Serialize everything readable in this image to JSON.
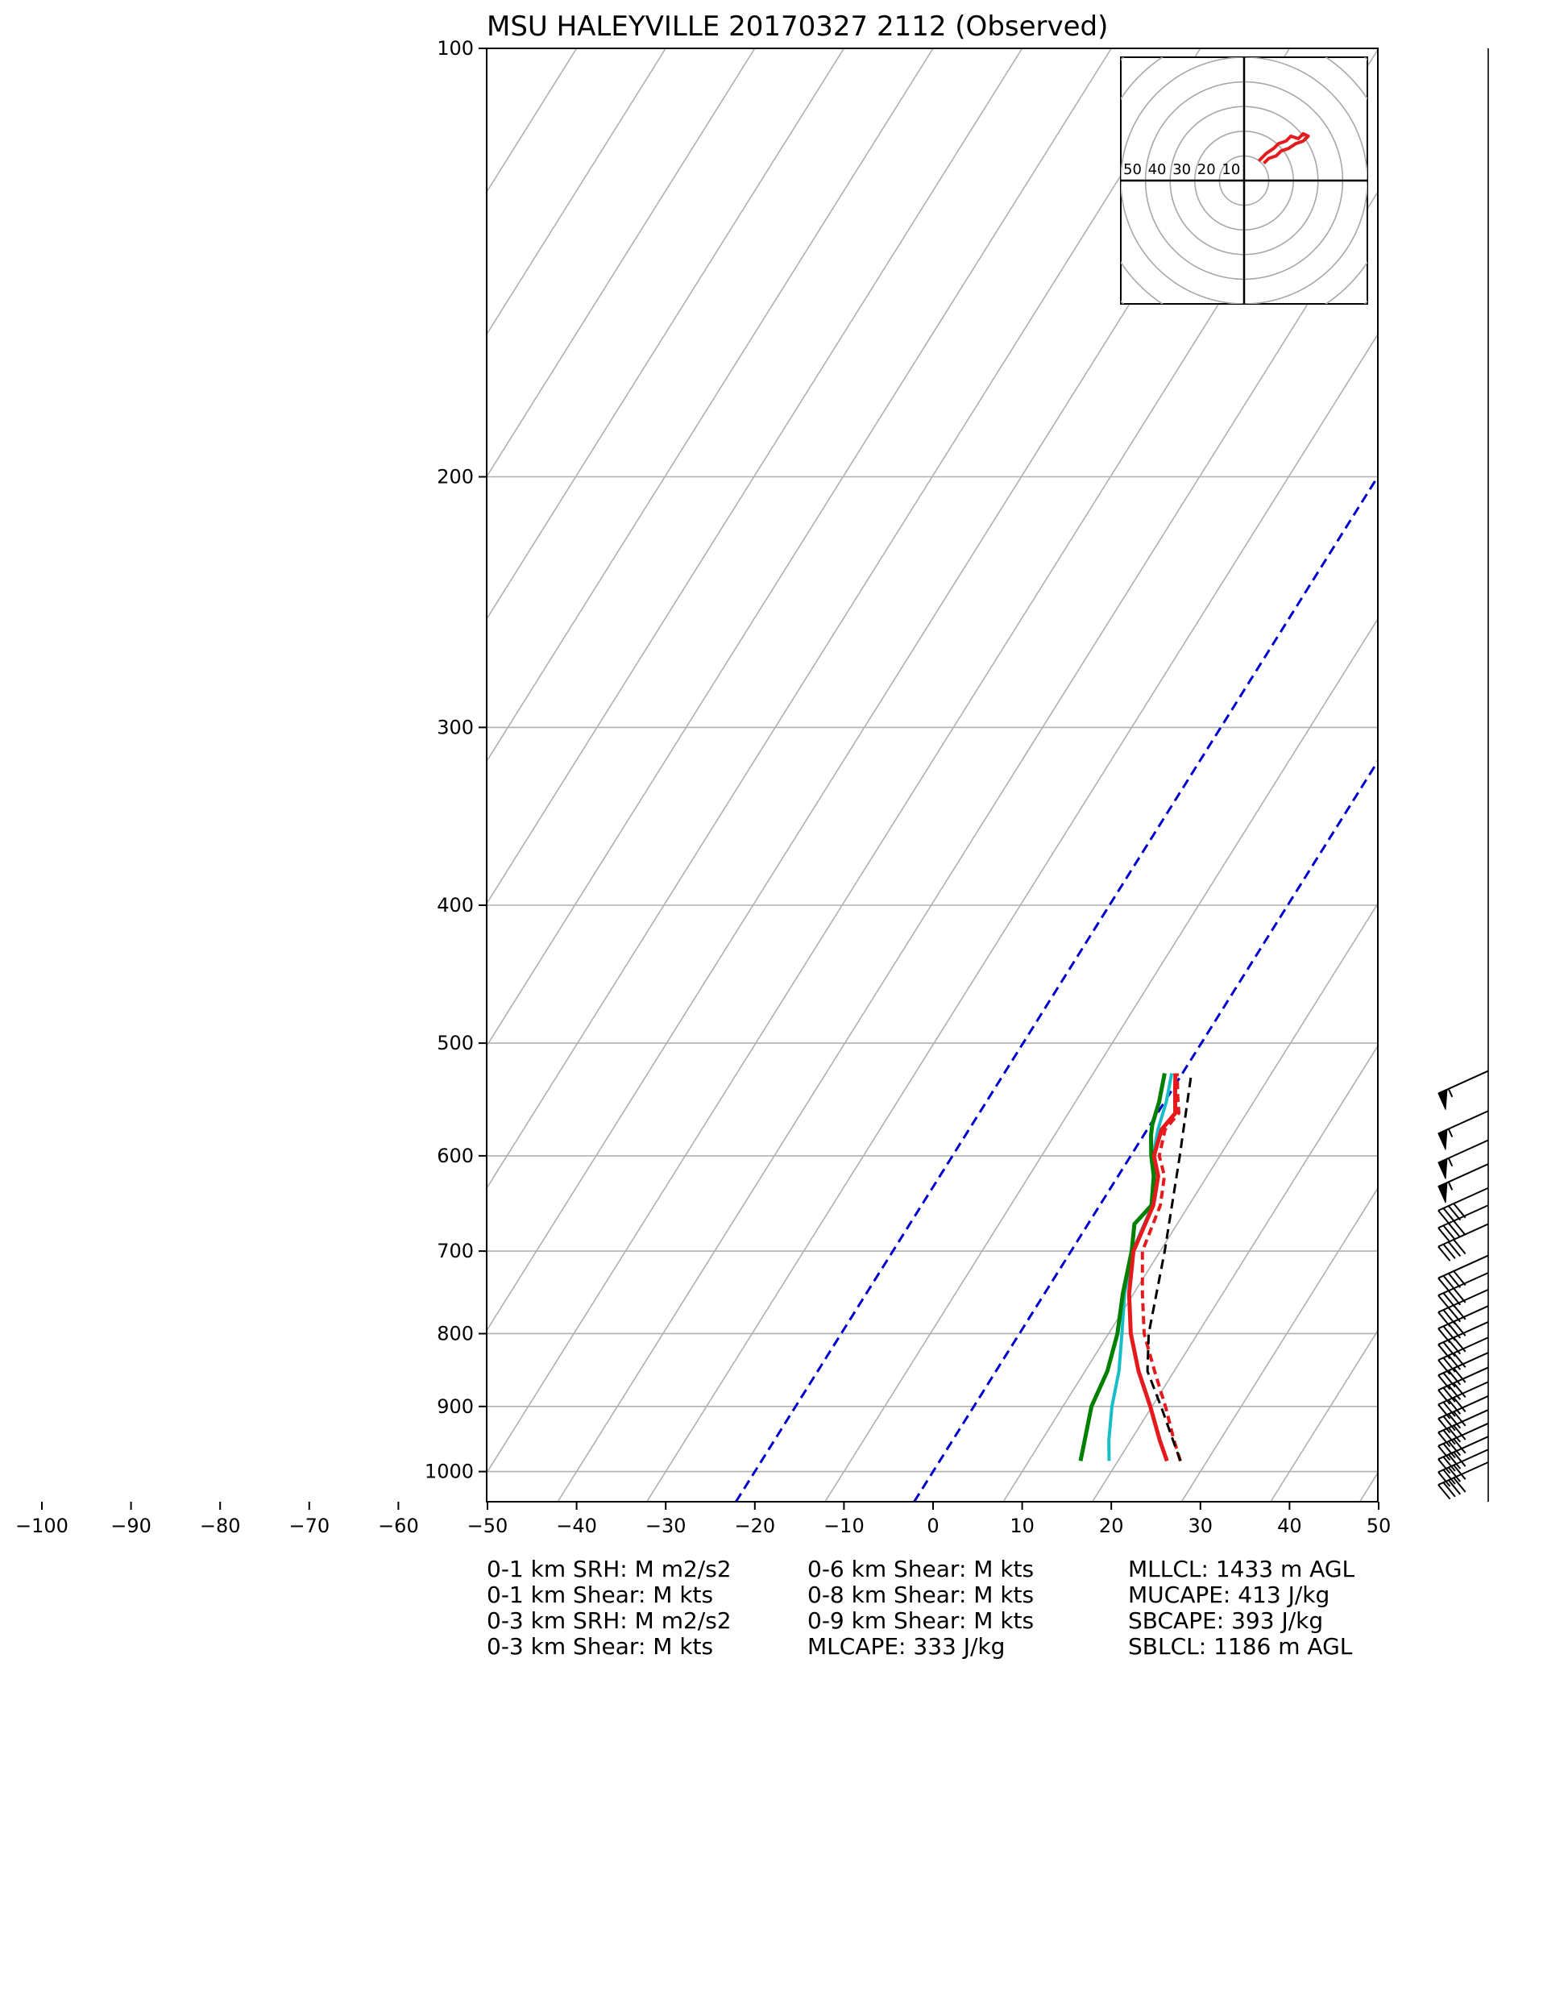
{
  "chart_data": {
    "type": "skew-t",
    "title": "MSU HALEYVILLE 20170327 2112   (Observed)",
    "x_ticks": [
      -100,
      -90,
      -80,
      -70,
      -60,
      -50,
      -40,
      -30,
      -20,
      -10,
      0,
      10,
      20,
      30,
      40,
      50
    ],
    "x_range": [
      -50,
      50
    ],
    "y_ticks": [
      100,
      200,
      300,
      400,
      500,
      600,
      700,
      800,
      900,
      1000
    ],
    "y_range": [
      1050,
      100
    ],
    "y_log_scale": true,
    "grid": true,
    "colors": {
      "temperature": "#e41a1c",
      "virtual_temperature": "#e41a1c",
      "dewpoint": "#008000",
      "wetbulb": "#17bec8",
      "parcel": "#000000",
      "isotherm_highlight": "#0000cc",
      "grid": "#b0b0b0"
    },
    "isotherms_highlighted": [
      -20,
      0
    ],
    "temperature": [
      {
        "p": 983,
        "t": 25.5
      },
      {
        "p": 950,
        "t": 23.2
      },
      {
        "p": 900,
        "t": 19.8
      },
      {
        "p": 850,
        "t": 16.0
      },
      {
        "p": 800,
        "t": 12.5
      },
      {
        "p": 750,
        "t": 9.5
      },
      {
        "p": 700,
        "t": 7.0
      },
      {
        "p": 650,
        "t": 6.0
      },
      {
        "p": 620,
        "t": 4.5
      },
      {
        "p": 600,
        "t": 2.6
      },
      {
        "p": 575,
        "t": 1.6
      },
      {
        "p": 560,
        "t": 2.0
      },
      {
        "p": 545,
        "t": 0.8
      },
      {
        "p": 525,
        "t": -0.8
      }
    ],
    "virtual_temperature": [
      {
        "p": 983,
        "t": 27.0
      },
      {
        "p": 950,
        "t": 24.8
      },
      {
        "p": 900,
        "t": 21.5
      },
      {
        "p": 850,
        "t": 17.8
      },
      {
        "p": 800,
        "t": 14.0
      },
      {
        "p": 750,
        "t": 11.0
      },
      {
        "p": 700,
        "t": 8.0
      },
      {
        "p": 650,
        "t": 6.8
      },
      {
        "p": 620,
        "t": 5.2
      },
      {
        "p": 600,
        "t": 3.2
      },
      {
        "p": 575,
        "t": 2.0
      },
      {
        "p": 560,
        "t": 2.4
      },
      {
        "p": 545,
        "t": 1.1
      },
      {
        "p": 525,
        "t": -0.6
      }
    ],
    "dewpoint": [
      {
        "p": 983,
        "t": 15.8
      },
      {
        "p": 950,
        "t": 14.8
      },
      {
        "p": 900,
        "t": 13.2
      },
      {
        "p": 850,
        "t": 12.5
      },
      {
        "p": 800,
        "t": 11.0
      },
      {
        "p": 750,
        "t": 8.8
      },
      {
        "p": 700,
        "t": 6.8
      },
      {
        "p": 670,
        "t": 5.2
      },
      {
        "p": 650,
        "t": 5.8
      },
      {
        "p": 620,
        "t": 4.0
      },
      {
        "p": 600,
        "t": 2.3
      },
      {
        "p": 580,
        "t": 0.8
      },
      {
        "p": 570,
        "t": 0.2
      },
      {
        "p": 550,
        "t": -0.6
      },
      {
        "p": 525,
        "t": -2.0
      }
    ],
    "wetbulb": [
      {
        "p": 983,
        "t": 19.0
      },
      {
        "p": 950,
        "t": 17.5
      },
      {
        "p": 900,
        "t": 15.5
      },
      {
        "p": 850,
        "t": 13.8
      },
      {
        "p": 800,
        "t": 11.5
      },
      {
        "p": 750,
        "t": 9.0
      },
      {
        "p": 700,
        "t": 6.9
      },
      {
        "p": 650,
        "t": 5.9
      },
      {
        "p": 620,
        "t": 4.2
      },
      {
        "p": 600,
        "t": 2.5
      },
      {
        "p": 575,
        "t": 1.2
      },
      {
        "p": 550,
        "t": 0.2
      },
      {
        "p": 525,
        "t": -1.2
      }
    ],
    "parcel": [
      {
        "p": 983,
        "t": 27.0
      },
      {
        "p": 900,
        "t": 21.0
      },
      {
        "p": 850,
        "t": 17.0
      },
      {
        "p": 800,
        "t": 14.5
      },
      {
        "p": 700,
        "t": 10.5
      },
      {
        "p": 600,
        "t": 5.5
      },
      {
        "p": 525,
        "t": 1.0
      }
    ],
    "wind_barbs": [
      {
        "p": 985,
        "speed_kts": 40,
        "dir_deg": 240
      },
      {
        "p": 965,
        "speed_kts": 40,
        "dir_deg": 240
      },
      {
        "p": 945,
        "speed_kts": 40,
        "dir_deg": 240
      },
      {
        "p": 925,
        "speed_kts": 40,
        "dir_deg": 240
      },
      {
        "p": 905,
        "speed_kts": 40,
        "dir_deg": 240
      },
      {
        "p": 885,
        "speed_kts": 40,
        "dir_deg": 240
      },
      {
        "p": 865,
        "speed_kts": 40,
        "dir_deg": 240
      },
      {
        "p": 845,
        "speed_kts": 40,
        "dir_deg": 240
      },
      {
        "p": 825,
        "speed_kts": 40,
        "dir_deg": 240
      },
      {
        "p": 805,
        "speed_kts": 40,
        "dir_deg": 240
      },
      {
        "p": 785,
        "speed_kts": 40,
        "dir_deg": 240
      },
      {
        "p": 765,
        "speed_kts": 40,
        "dir_deg": 240
      },
      {
        "p": 745,
        "speed_kts": 40,
        "dir_deg": 240
      },
      {
        "p": 725,
        "speed_kts": 40,
        "dir_deg": 240
      },
      {
        "p": 705,
        "speed_kts": 40,
        "dir_deg": 240
      },
      {
        "p": 670,
        "speed_kts": 40,
        "dir_deg": 240
      },
      {
        "p": 650,
        "speed_kts": 40,
        "dir_deg": 240
      },
      {
        "p": 632,
        "speed_kts": 40,
        "dir_deg": 240
      },
      {
        "p": 608,
        "speed_kts": 55,
        "dir_deg": 245
      },
      {
        "p": 585,
        "speed_kts": 55,
        "dir_deg": 245
      },
      {
        "p": 558,
        "speed_kts": 55,
        "dir_deg": 245
      },
      {
        "p": 523,
        "speed_kts": 55,
        "dir_deg": 245
      }
    ],
    "hodograph": {
      "ring_labels": [
        "50",
        "40",
        "30",
        "20",
        "10"
      ],
      "u_range": [
        -50,
        50
      ],
      "v_range": [
        -50,
        50
      ],
      "trace": [
        {
          "u": 6,
          "v": 8
        },
        {
          "u": 9,
          "v": 11
        },
        {
          "u": 12,
          "v": 13
        },
        {
          "u": 14,
          "v": 15
        },
        {
          "u": 17,
          "v": 16
        },
        {
          "u": 19,
          "v": 18
        },
        {
          "u": 22,
          "v": 17
        },
        {
          "u": 24,
          "v": 19
        },
        {
          "u": 26,
          "v": 18
        },
        {
          "u": 24,
          "v": 16
        },
        {
          "u": 21,
          "v": 15
        },
        {
          "u": 18,
          "v": 13
        },
        {
          "u": 15,
          "v": 12
        },
        {
          "u": 13,
          "v": 10
        },
        {
          "u": 10,
          "v": 9
        },
        {
          "u": 8,
          "v": 7
        }
      ]
    },
    "parameters": {
      "col1": [
        "0-1 km SRH: M m2/s2",
        "0-1 km Shear: M kts",
        "0-3 km SRH: M m2/s2",
        "0-3 km Shear: M kts"
      ],
      "col2": [
        "0-6 km Shear: M kts",
        "0-8 km Shear: M kts",
        "0-9 km Shear: M kts",
        "MLCAPE: 333 J/kg"
      ],
      "col3": [
        "MLLCL: 1433 m AGL",
        "MUCAPE: 413 J/kg",
        "SBCAPE: 393 J/kg",
        "SBLCL: 1186 m AGL"
      ]
    }
  }
}
